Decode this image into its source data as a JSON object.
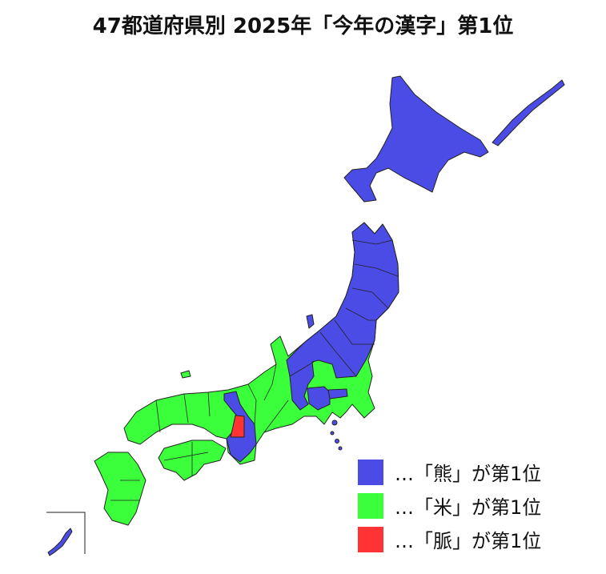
{
  "title": "47都道府県別 2025年「今年の漢字」第1位",
  "colors": {
    "kuma": "#4b4ce6",
    "kome": "#3cff3c",
    "myaku": "#ff3333",
    "border": "#222222"
  },
  "legend": [
    {
      "key": "kuma",
      "label": "…「熊」が第1位"
    },
    {
      "key": "kome",
      "label": "…「米」が第1位"
    },
    {
      "key": "myaku",
      "label": "…「脈」が第1位"
    }
  ]
}
